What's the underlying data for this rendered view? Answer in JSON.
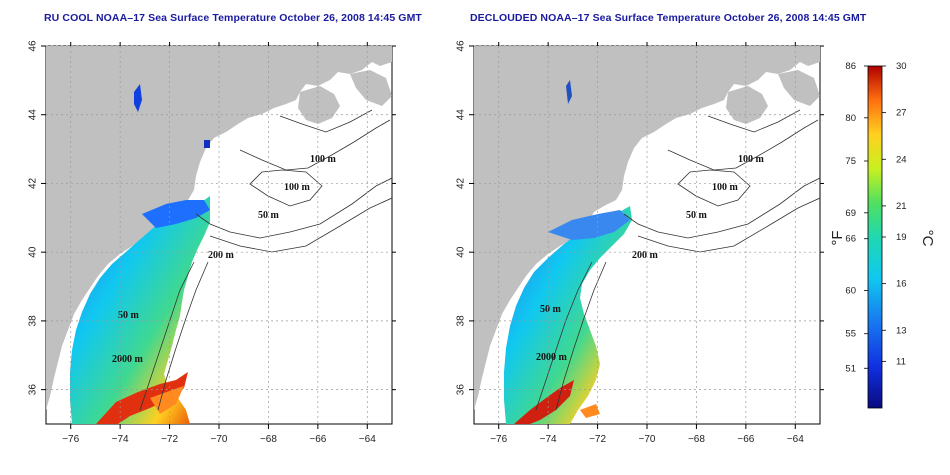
{
  "panels": [
    {
      "id": "left",
      "title": "RU COOL NOAA–17 Sea Surface Temperature October 26, 2008 14:45 GMT",
      "contour_labels": [
        "100 m",
        "100 m",
        "50 m",
        "200 m",
        "50 m",
        "2000 m"
      ]
    },
    {
      "id": "right",
      "title": "DECLOUDED NOAA–17 Sea Surface Temperature October 26, 2008 14:45 GMT",
      "contour_labels": [
        "100 m",
        "100 m",
        "50 m",
        "200 m",
        "50 m",
        "2000 m"
      ]
    }
  ],
  "axes": {
    "lon_ticks": [
      "−76",
      "−74",
      "−72",
      "−70",
      "−68",
      "−66",
      "−64"
    ],
    "lat_ticks": [
      "36",
      "38",
      "40",
      "42",
      "44",
      "46"
    ],
    "lon_range": [
      -77,
      -63
    ],
    "lat_range": [
      35,
      46
    ],
    "grid": "dotted"
  },
  "colorbar": {
    "unit_f": "°F",
    "unit_c": "°C",
    "fahrenheit_labels": [
      "86",
      "80",
      "75",
      "69",
      "66",
      "60",
      "55",
      "51"
    ],
    "celsius_labels": [
      "30",
      "27",
      "24",
      "21",
      "19",
      "16",
      "13",
      "11"
    ],
    "celsius_values": [
      30,
      27,
      24,
      21,
      19,
      16,
      13,
      11
    ],
    "range_c": [
      8,
      30
    ]
  },
  "colors": {
    "land": "#c0c0c0",
    "title": "#1a1aa0"
  }
}
